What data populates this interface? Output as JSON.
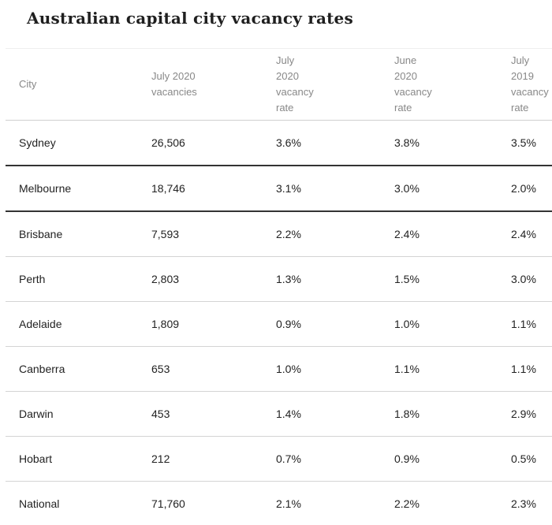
{
  "title": "Australian capital city vacancy rates",
  "table": {
    "headers": [
      [
        "City"
      ],
      [
        "July 2020",
        "vacancies"
      ],
      [
        "July",
        "2020",
        "vacancy",
        "rate"
      ],
      [
        "June",
        "2020",
        "vacancy",
        "rate"
      ],
      [
        "July",
        "2019",
        "vacancy",
        "rate"
      ]
    ],
    "rows": [
      [
        "Sydney",
        "26,506",
        "3.6%",
        "3.8%",
        "3.5%"
      ],
      [
        "Melbourne",
        "18,746",
        "3.1%",
        "3.0%",
        "2.0%"
      ],
      [
        "Brisbane",
        "7,593",
        "2.2%",
        "2.4%",
        "2.4%"
      ],
      [
        "Perth",
        "2,803",
        "1.3%",
        "1.5%",
        "3.0%"
      ],
      [
        "Adelaide",
        "1,809",
        "0.9%",
        "1.0%",
        "1.1%"
      ],
      [
        "Canberra",
        "653",
        "1.0%",
        "1.1%",
        "1.1%"
      ],
      [
        "Darwin",
        "453",
        "1.4%",
        "1.8%",
        "2.9%"
      ],
      [
        "Hobart",
        "212",
        "0.7%",
        "0.9%",
        "0.5%"
      ],
      [
        "National",
        "71,760",
        "2.1%",
        "2.2%",
        "2.3%"
      ]
    ]
  }
}
